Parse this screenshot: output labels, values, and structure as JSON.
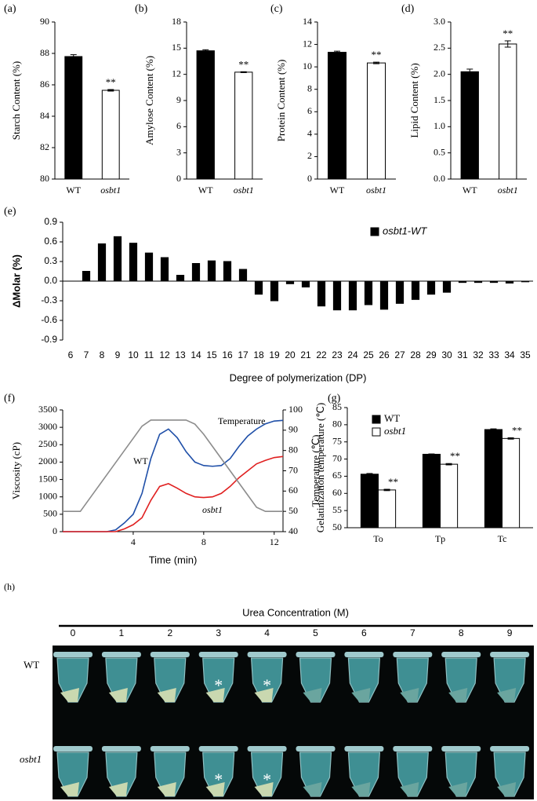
{
  "chart_data": [
    {
      "type": "bar",
      "panel": "(a)",
      "ylabel": "Starch  Content (%)",
      "categories": [
        "WT",
        "osbt1"
      ],
      "values": [
        87.8,
        85.65
      ],
      "errors": [
        0.12,
        0.05
      ],
      "colors": [
        "#000000",
        "#ffffff"
      ],
      "annotations": [
        null,
        "**"
      ],
      "ylim": [
        80,
        90
      ],
      "yticks": [
        80,
        82,
        84,
        86,
        88,
        90
      ]
    },
    {
      "type": "bar",
      "panel": "(b)",
      "ylabel": "Amylose  Content (%)",
      "categories": [
        "WT",
        "osbt1"
      ],
      "values": [
        14.7,
        12.25
      ],
      "errors": [
        0.12,
        0.05
      ],
      "colors": [
        "#000000",
        "#ffffff"
      ],
      "annotations": [
        null,
        "**"
      ],
      "ylim": [
        0,
        18
      ],
      "yticks": [
        0,
        3,
        6,
        9,
        12,
        15,
        18
      ]
    },
    {
      "type": "bar",
      "panel": "(c)",
      "ylabel": "Protein  Content (%)",
      "categories": [
        "WT",
        "osbt1"
      ],
      "values": [
        11.3,
        10.35
      ],
      "errors": [
        0.1,
        0.07
      ],
      "colors": [
        "#000000",
        "#ffffff"
      ],
      "annotations": [
        null,
        "**"
      ],
      "ylim": [
        0,
        14
      ],
      "yticks": [
        0,
        2,
        4,
        6,
        8,
        10,
        12,
        14
      ]
    },
    {
      "type": "bar",
      "panel": "(d)",
      "ylabel": "Lipid  Content (%)",
      "categories": [
        "WT",
        "osbt1"
      ],
      "values": [
        2.05,
        2.58
      ],
      "errors": [
        0.05,
        0.06
      ],
      "colors": [
        "#000000",
        "#ffffff"
      ],
      "annotations": [
        null,
        "**"
      ],
      "ylim": [
        0,
        3
      ],
      "yticks": [
        {
          "value": 0,
          "label": "0.0"
        },
        0.5,
        {
          "value": 1,
          "label": "1.0"
        },
        1.5,
        {
          "value": 2,
          "label": "2.0"
        },
        2.5,
        {
          "value": 3,
          "label": "3.0"
        }
      ]
    },
    {
      "type": "bar",
      "panel": "(e)",
      "ylabel": "ΔMolar (%)",
      "xlabel": "Degree of polymerization (DP)",
      "categories": [
        6,
        7,
        8,
        9,
        10,
        11,
        12,
        13,
        14,
        15,
        16,
        17,
        18,
        19,
        20,
        21,
        22,
        23,
        24,
        25,
        26,
        27,
        28,
        29,
        30,
        31,
        32,
        33,
        34,
        35
      ],
      "series": [
        {
          "name": "osbt1-WT",
          "color": "#000000",
          "values": [
            0,
            0.15,
            0.57,
            0.68,
            0.58,
            0.43,
            0.36,
            0.09,
            0.27,
            0.31,
            0.3,
            0.18,
            -0.2,
            -0.3,
            -0.04,
            -0.09,
            -0.38,
            -0.44,
            -0.44,
            -0.36,
            -0.43,
            -0.34,
            -0.28,
            -0.2,
            -0.17,
            -0.02,
            -0.02,
            -0.02,
            -0.03,
            -0.01
          ]
        }
      ],
      "legend": true,
      "ylim": [
        -0.9,
        0.9
      ],
      "yticks": [
        -0.9,
        -0.6,
        -0.3,
        {
          "value": 0,
          "label": "0.0"
        },
        0.3,
        0.6,
        0.9
      ]
    },
    {
      "type": "line",
      "panel": "(f)",
      "xlabel": "Time (min)",
      "ylabel": "Viscosity (cP)",
      "y2label": "Temperature (℃)",
      "x": [
        0,
        0.5,
        1,
        1.5,
        2,
        2.5,
        3,
        3.5,
        4,
        4.5,
        5,
        5.5,
        6,
        6.5,
        7,
        7.5,
        8,
        8.5,
        9,
        9.5,
        10,
        10.5,
        11,
        11.5,
        12,
        12.5
      ],
      "series": [
        {
          "name": "WT",
          "color": "#1f4fa8",
          "values": [
            0,
            0,
            0,
            0,
            0,
            0,
            50,
            250,
            500,
            1100,
            2100,
            2800,
            2950,
            2700,
            2300,
            2000,
            1900,
            1880,
            1900,
            2100,
            2450,
            2750,
            2950,
            3100,
            3180,
            3200
          ]
        },
        {
          "name": "osbt1",
          "color": "#e02020",
          "values": [
            0,
            0,
            0,
            0,
            0,
            0,
            0,
            80,
            200,
            400,
            900,
            1300,
            1380,
            1250,
            1100,
            1000,
            980,
            1000,
            1100,
            1300,
            1550,
            1750,
            1950,
            2050,
            2130,
            2160
          ]
        },
        {
          "name": "Temperature",
          "color": "#8c8c8c",
          "axis": "y2",
          "values": [
            50,
            50,
            50,
            56,
            62,
            68,
            74,
            80,
            86,
            92,
            95,
            95,
            95,
            95,
            95,
            93,
            88,
            82,
            76,
            70,
            64,
            58,
            52,
            50,
            50,
            50
          ]
        }
      ],
      "xlim": [
        0,
        12.5
      ],
      "xticks": [
        4,
        8,
        12
      ],
      "ylim": [
        0,
        3500
      ],
      "yticks": [
        0,
        500,
        1000,
        1500,
        2000,
        2500,
        3000,
        3500
      ],
      "y2lim": [
        40,
        100
      ],
      "y2ticks": [
        40,
        50,
        60,
        70,
        80,
        90,
        100
      ]
    },
    {
      "type": "bar",
      "panel": "(g)",
      "ylabel": "Gelatinization temperature (℃)",
      "categories": [
        "To",
        "Tp",
        "Tc"
      ],
      "series": [
        {
          "name": "WT",
          "color": "#000000",
          "values": [
            65.6,
            71.4,
            78.6
          ],
          "errors": [
            0.2,
            0.1,
            0.2
          ]
        },
        {
          "name": "osbt1",
          "color": "#ffffff",
          "values": [
            61,
            68.5,
            76
          ],
          "errors": [
            0.2,
            0.2,
            0.2
          ],
          "annotations": [
            "**",
            "**",
            "**"
          ]
        }
      ],
      "legend": true,
      "ylim": [
        50,
        85
      ],
      "yticks": [
        50,
        55,
        60,
        65,
        70,
        75,
        80,
        85
      ]
    }
  ],
  "photo": {
    "panel": "(h)",
    "title": "Urea Concentration (M)",
    "concentrations": [
      0,
      1,
      2,
      3,
      4,
      5,
      6,
      7,
      8,
      9
    ],
    "rows": [
      "WT",
      "osbt1"
    ],
    "asterisk": "*"
  }
}
